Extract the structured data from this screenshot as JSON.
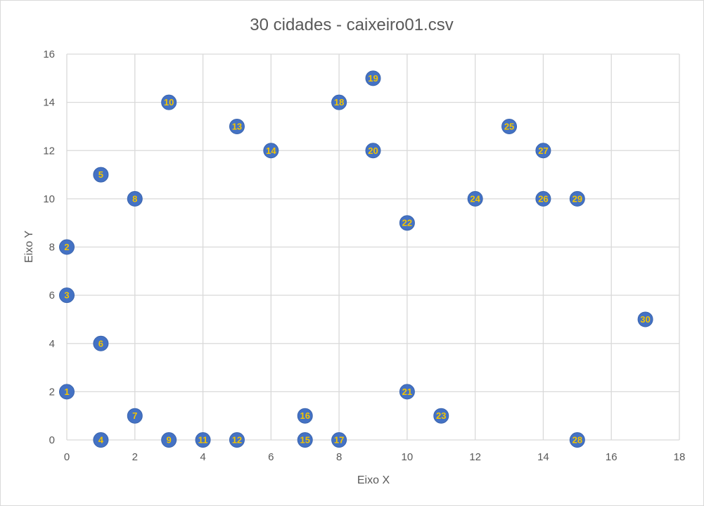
{
  "chart_data": {
    "type": "scatter",
    "title": "30 cidades - caixeiro01.csv",
    "xlabel": "Eixo X",
    "ylabel": "Eixo Y",
    "xlim": [
      0,
      18
    ],
    "ylim": [
      0,
      16
    ],
    "x_ticks": [
      "0",
      "2",
      "4",
      "6",
      "8",
      "10",
      "12",
      "14",
      "16",
      "18"
    ],
    "y_ticks": [
      "0",
      "2",
      "4",
      "6",
      "8",
      "10",
      "12",
      "14",
      "16"
    ],
    "grid": true,
    "legend": "none",
    "marker_color": "#4472c4",
    "label_color": "#f2c400",
    "points": [
      {
        "label": "1",
        "x": 0,
        "y": 2
      },
      {
        "label": "2",
        "x": 0,
        "y": 8
      },
      {
        "label": "3",
        "x": 0,
        "y": 6
      },
      {
        "label": "4",
        "x": 1,
        "y": 0
      },
      {
        "label": "5",
        "x": 1,
        "y": 11
      },
      {
        "label": "6",
        "x": 1,
        "y": 4
      },
      {
        "label": "7",
        "x": 2,
        "y": 1
      },
      {
        "label": "8",
        "x": 2,
        "y": 10
      },
      {
        "label": "9",
        "x": 3,
        "y": 0
      },
      {
        "label": "10",
        "x": 3,
        "y": 14
      },
      {
        "label": "11",
        "x": 4,
        "y": 0
      },
      {
        "label": "12",
        "x": 5,
        "y": 0
      },
      {
        "label": "13",
        "x": 5,
        "y": 13
      },
      {
        "label": "14",
        "x": 6,
        "y": 12
      },
      {
        "label": "15",
        "x": 7,
        "y": 0
      },
      {
        "label": "16",
        "x": 7,
        "y": 1
      },
      {
        "label": "17",
        "x": 8,
        "y": 0
      },
      {
        "label": "18",
        "x": 8,
        "y": 14
      },
      {
        "label": "19",
        "x": 9,
        "y": 15
      },
      {
        "label": "20",
        "x": 9,
        "y": 12
      },
      {
        "label": "21",
        "x": 10,
        "y": 2
      },
      {
        "label": "22",
        "x": 10,
        "y": 9
      },
      {
        "label": "23",
        "x": 11,
        "y": 1
      },
      {
        "label": "24",
        "x": 12,
        "y": 10
      },
      {
        "label": "25",
        "x": 13,
        "y": 13
      },
      {
        "label": "26",
        "x": 14,
        "y": 10
      },
      {
        "label": "27",
        "x": 14,
        "y": 12
      },
      {
        "label": "28",
        "x": 15,
        "y": 0
      },
      {
        "label": "29",
        "x": 15,
        "y": 10
      },
      {
        "label": "30",
        "x": 17,
        "y": 5
      }
    ]
  }
}
